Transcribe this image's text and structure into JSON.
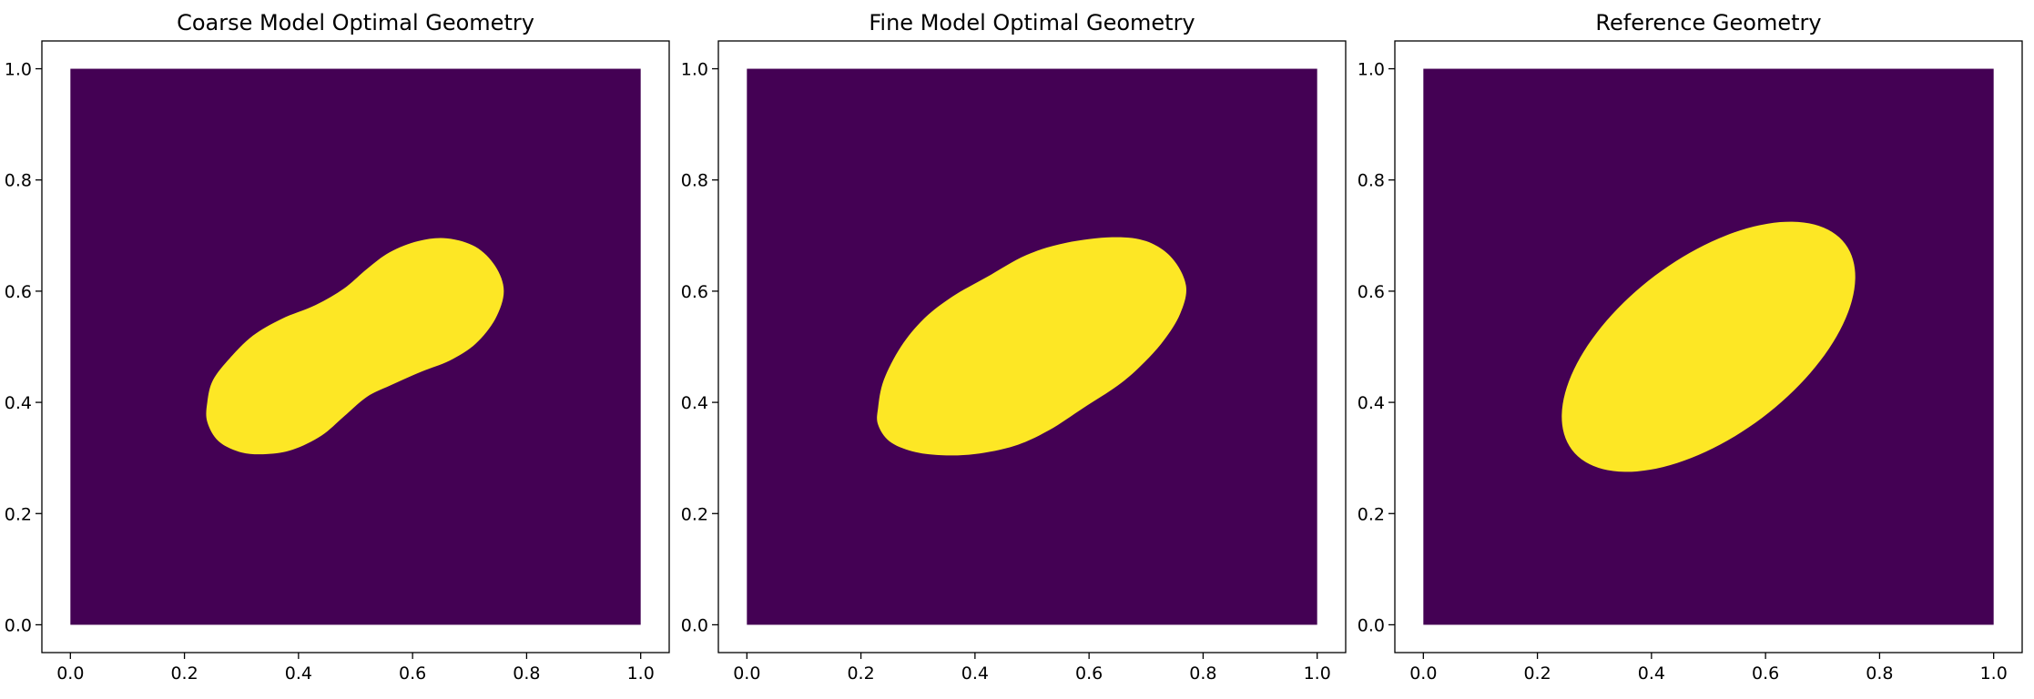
{
  "colors": {
    "background_region": "#440154",
    "inclusion_region": "#fde725",
    "axes_frame": "#000000",
    "figure_background": "#ffffff"
  },
  "chart_data": [
    {
      "type": "heatmap",
      "title": "Coarse Model Optimal Geometry",
      "xlabel": "",
      "ylabel": "",
      "xlim": [
        -0.05,
        1.05
      ],
      "ylim": [
        -0.05,
        1.05
      ],
      "xticks": [
        "0.0",
        "0.2",
        "0.4",
        "0.6",
        "0.8",
        "1.0"
      ],
      "yticks": [
        "0.0",
        "0.2",
        "0.4",
        "0.6",
        "0.8",
        "1.0"
      ],
      "domain": {
        "x": [
          0,
          1
        ],
        "y": [
          0,
          1
        ]
      },
      "grid": false,
      "inclusion_boundary": [
        [
          0.24,
          0.4
        ],
        [
          0.25,
          0.44
        ],
        [
          0.28,
          0.48
        ],
        [
          0.32,
          0.52
        ],
        [
          0.37,
          0.55
        ],
        [
          0.43,
          0.575
        ],
        [
          0.48,
          0.605
        ],
        [
          0.52,
          0.64
        ],
        [
          0.56,
          0.67
        ],
        [
          0.61,
          0.69
        ],
        [
          0.66,
          0.695
        ],
        [
          0.71,
          0.68
        ],
        [
          0.745,
          0.645
        ],
        [
          0.76,
          0.6
        ],
        [
          0.745,
          0.55
        ],
        [
          0.71,
          0.505
        ],
        [
          0.665,
          0.475
        ],
        [
          0.615,
          0.455
        ],
        [
          0.56,
          0.43
        ],
        [
          0.52,
          0.41
        ],
        [
          0.48,
          0.375
        ],
        [
          0.44,
          0.34
        ],
        [
          0.39,
          0.315
        ],
        [
          0.345,
          0.307
        ],
        [
          0.3,
          0.31
        ],
        [
          0.26,
          0.33
        ],
        [
          0.24,
          0.365
        ]
      ]
    },
    {
      "type": "heatmap",
      "title": "Fine Model Optimal Geometry",
      "xlabel": "",
      "ylabel": "",
      "xlim": [
        -0.05,
        1.05
      ],
      "ylim": [
        -0.05,
        1.05
      ],
      "xticks": [
        "0.0",
        "0.2",
        "0.4",
        "0.6",
        "0.8",
        "1.0"
      ],
      "yticks": [
        "0.0",
        "0.2",
        "0.4",
        "0.6",
        "0.8",
        "1.0"
      ],
      "domain": {
        "x": [
          0,
          1
        ],
        "y": [
          0,
          1
        ]
      },
      "grid": false,
      "inclusion_boundary": [
        [
          0.23,
          0.39
        ],
        [
          0.24,
          0.44
        ],
        [
          0.27,
          0.5
        ],
        [
          0.31,
          0.55
        ],
        [
          0.36,
          0.59
        ],
        [
          0.42,
          0.625
        ],
        [
          0.49,
          0.665
        ],
        [
          0.56,
          0.687
        ],
        [
          0.64,
          0.697
        ],
        [
          0.7,
          0.69
        ],
        [
          0.745,
          0.66
        ],
        [
          0.77,
          0.61
        ],
        [
          0.76,
          0.56
        ],
        [
          0.73,
          0.51
        ],
        [
          0.69,
          0.465
        ],
        [
          0.65,
          0.43
        ],
        [
          0.59,
          0.39
        ],
        [
          0.53,
          0.35
        ],
        [
          0.47,
          0.322
        ],
        [
          0.4,
          0.307
        ],
        [
          0.34,
          0.305
        ],
        [
          0.29,
          0.312
        ],
        [
          0.25,
          0.33
        ],
        [
          0.23,
          0.36
        ]
      ]
    },
    {
      "type": "heatmap",
      "title": "Reference Geometry",
      "xlabel": "",
      "ylabel": "",
      "xlim": [
        -0.05,
        1.05
      ],
      "ylim": [
        -0.05,
        1.05
      ],
      "xticks": [
        "0.0",
        "0.2",
        "0.4",
        "0.6",
        "0.8",
        "1.0"
      ],
      "yticks": [
        "0.0",
        "0.2",
        "0.4",
        "0.6",
        "0.8",
        "1.0"
      ],
      "domain": {
        "x": [
          0,
          1
        ],
        "y": [
          0,
          1
        ]
      },
      "grid": false,
      "inclusion_ellipse": {
        "center": [
          0.5,
          0.5
        ],
        "semi_axes": [
          0.3,
          0.16
        ],
        "angle_deg": 37
      }
    }
  ]
}
